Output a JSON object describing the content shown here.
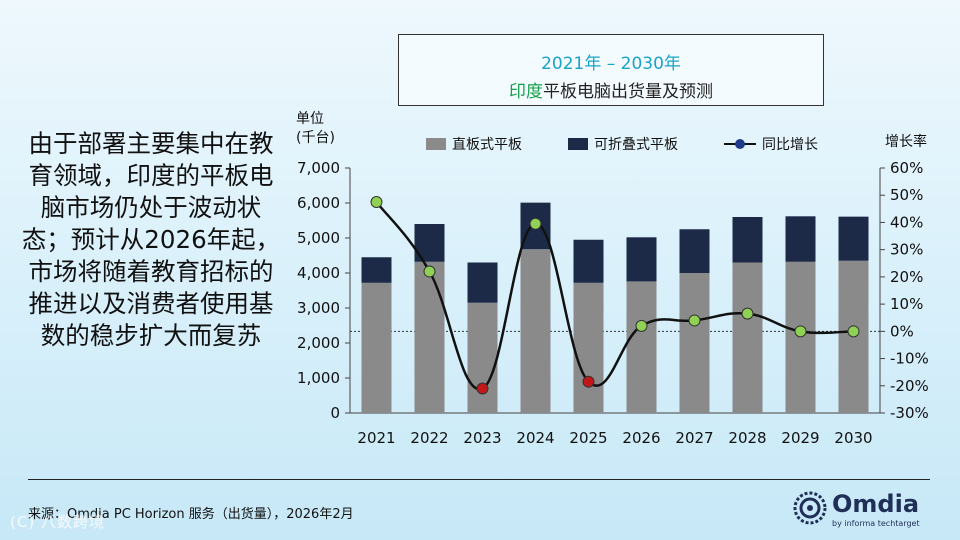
{
  "title": {
    "line1": "2021年 – 2030年",
    "line2_highlight": "印度",
    "line2_rest": "平板电脑出货量及预测"
  },
  "lead_text": "由于部署主要集中在教育领域，印度的平板电脑市场仍处于波动状态；预计从2026年起，市场将随着教育招标的推进以及消费者使用基数的稳步扩大而复苏",
  "unit_label": {
    "line1": "单位",
    "line2": "(千台)"
  },
  "growth_axis_label": "增长率",
  "legend": {
    "slate": "直板式平板",
    "detachable": "可折叠式平板",
    "yoy": "同比增长"
  },
  "footer": {
    "source": "来源：Omdia PC Horizon 服务（出货量），2026年2月"
  },
  "logo": {
    "name": "Omdia",
    "sub": "by informa techtarget"
  },
  "watermark": "(C) 八数跨境",
  "colors": {
    "slate": "#8a8a8a",
    "detachable": "#1c2a47",
    "line": "#111111",
    "marker_pos": "#8fd155",
    "marker_neg": "#c01818",
    "title_accent": "#1aa3c8",
    "highlight": "#16a04a"
  },
  "chart_data": {
    "type": "bar",
    "stacked": true,
    "categories": [
      "2021",
      "2022",
      "2023",
      "2024",
      "2025",
      "2026",
      "2027",
      "2028",
      "2029",
      "2030"
    ],
    "series": [
      {
        "name": "直板式平板",
        "values": [
          3720,
          4320,
          3150,
          4680,
          3720,
          3760,
          4000,
          4300,
          4320,
          4350
        ]
      },
      {
        "name": "可折叠式平板",
        "values": [
          730,
          1080,
          1150,
          1330,
          1230,
          1260,
          1250,
          1300,
          1300,
          1260
        ]
      }
    ],
    "line_series": {
      "name": "同比增长",
      "unit": "%",
      "values": [
        47.5,
        22,
        -21,
        39.5,
        -18.5,
        2,
        4,
        6.5,
        0,
        0
      ]
    },
    "ylim": [
      0,
      7000
    ],
    "y_ticks": [
      "0",
      "1,000",
      "2,000",
      "3,000",
      "4,000",
      "5,000",
      "6,000",
      "7,000"
    ],
    "y2lim": [
      -30,
      60
    ],
    "y2_ticks": [
      "-30%",
      "-20%",
      "-10%",
      "0%",
      "10%",
      "20%",
      "30%",
      "40%",
      "50%",
      "60%"
    ],
    "ylabel": "单位 (千台)",
    "y2label": "增长率"
  }
}
